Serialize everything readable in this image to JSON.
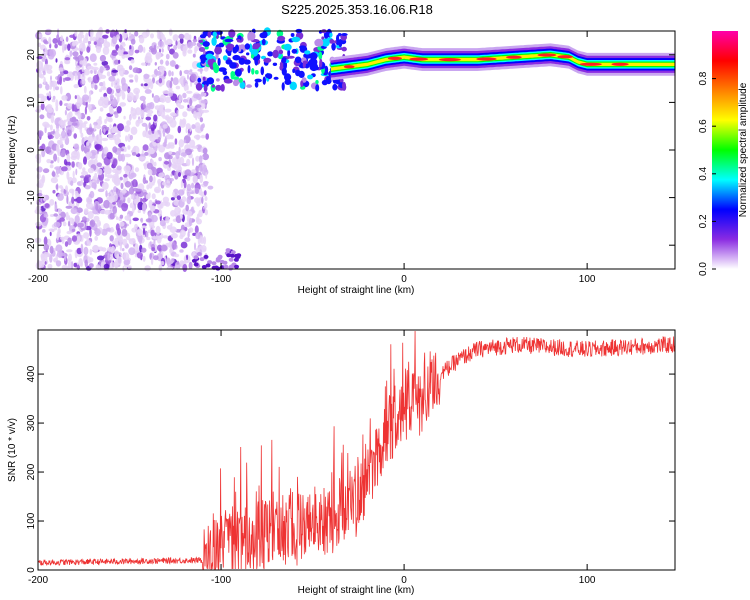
{
  "title": "S225.2025.353.16.06.R18",
  "chart_data": [
    {
      "type": "heatmap",
      "name": "spectrogram",
      "xlabel": "Height of straight line (km)",
      "ylabel": "Frequency (Hz)",
      "xlim": [
        -200,
        148
      ],
      "ylim": [
        -25,
        25
      ],
      "xticks": [
        -200,
        -100,
        0,
        100
      ],
      "yticks": [
        20,
        10,
        0,
        -10,
        -20
      ],
      "colorbar": {
        "label": "Normalized spectral amplitude",
        "range": [
          0,
          1
        ],
        "ticks": [
          "0.0",
          "0.2",
          "0.4",
          "0.6",
          "0.8"
        ],
        "colormap": [
          "#ffffff",
          "#8a2be2",
          "#0000ff",
          "#00ffff",
          "#00ff00",
          "#ffff00",
          "#ff8000",
          "#ff0000",
          "#ff00aa"
        ]
      },
      "features": {
        "noise_region_x": [
          -200,
          -108
        ],
        "signal_band": {
          "x": [
            -40,
            -20,
            -10,
            0,
            10,
            20,
            40,
            60,
            80,
            90,
            95,
            100,
            120,
            148
          ],
          "freq": [
            17,
            18,
            19,
            19.5,
            19,
            19,
            19,
            19.5,
            20,
            19.5,
            18.5,
            18,
            18,
            18
          ]
        }
      }
    },
    {
      "type": "line",
      "name": "snr",
      "xlabel": "Height of straight line (km)",
      "ylabel": "SNR (10 * v/v)",
      "xlim": [
        -200,
        148
      ],
      "ylim": [
        0,
        490
      ],
      "xticks": [
        -200,
        -100,
        0,
        100
      ],
      "yticks": [
        0,
        100,
        200,
        300,
        400
      ],
      "color": "#ee3333",
      "envelope": {
        "x": [
          -200,
          -110,
          -100,
          -80,
          -60,
          -40,
          -30,
          -20,
          -15,
          -10,
          0,
          10,
          20,
          30,
          40,
          60,
          80,
          100,
          120,
          148
        ],
        "y": [
          15,
          20,
          40,
          70,
          90,
          100,
          140,
          180,
          230,
          280,
          330,
          360,
          400,
          430,
          450,
          460,
          455,
          450,
          455,
          460
        ]
      }
    }
  ]
}
